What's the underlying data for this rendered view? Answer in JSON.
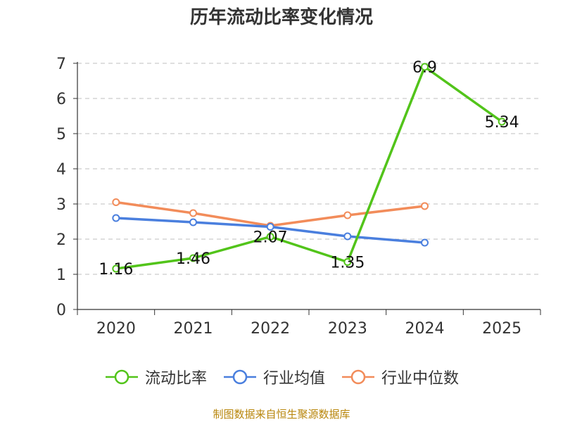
{
  "chart_data": {
    "type": "line",
    "title": "历年流动比率变化情况",
    "categories": [
      "2020",
      "2021",
      "2022",
      "2023",
      "2024",
      "2025"
    ],
    "ylim": [
      0,
      7
    ],
    "yticks": [
      "0",
      "1",
      "2",
      "3",
      "4",
      "5",
      "6",
      "7"
    ],
    "grid": true,
    "legend_position": "bottom",
    "series": [
      {
        "name": "流动比率",
        "color": "#52c41a",
        "values": [
          1.16,
          1.46,
          2.07,
          1.35,
          6.9,
          5.34
        ],
        "labels": [
          "1.16",
          "1.46",
          "2.07",
          "1.35",
          "6.9",
          "5.34"
        ]
      },
      {
        "name": "行业均值",
        "color": "#4a7fde",
        "values": [
          2.6,
          2.48,
          2.35,
          2.08,
          1.9,
          null
        ]
      },
      {
        "name": "行业中位数",
        "color": "#f28c5a",
        "values": [
          3.05,
          2.74,
          2.38,
          2.68,
          2.94,
          null
        ]
      }
    ],
    "source": "制图数据来自恒生聚源数据库"
  }
}
